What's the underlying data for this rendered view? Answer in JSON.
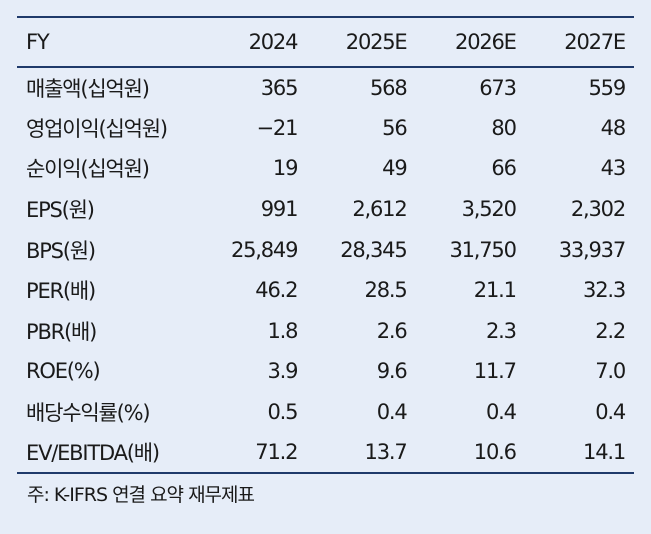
{
  "table": {
    "header": [
      "FY",
      "2024",
      "2025E",
      "2026E",
      "2027E"
    ],
    "rows": [
      {
        "label": "매출액(십억원)",
        "values": [
          "365",
          "568",
          "673",
          "559"
        ]
      },
      {
        "label": "영업이익(십억원)",
        "values": [
          "−21",
          "56",
          "80",
          "48"
        ]
      },
      {
        "label": "순이익(십억원)",
        "values": [
          "19",
          "49",
          "66",
          "43"
        ]
      },
      {
        "label": "EPS(원)",
        "values": [
          "991",
          "2,612",
          "3,520",
          "2,302"
        ]
      },
      {
        "label": "BPS(원)",
        "values": [
          "25,849",
          "28,345",
          "31,750",
          "33,937"
        ]
      },
      {
        "label": "PER(배)",
        "values": [
          "46.2",
          "28.5",
          "21.1",
          "32.3"
        ]
      },
      {
        "label": "PBR(배)",
        "values": [
          "1.8",
          "2.6",
          "2.3",
          "2.2"
        ]
      },
      {
        "label": "ROE(%)",
        "values": [
          "3.9",
          "9.6",
          "11.7",
          "7.0"
        ]
      },
      {
        "label": "배당수익률(%)",
        "values": [
          "0.5",
          "0.4",
          "0.4",
          "0.4"
        ]
      },
      {
        "label": "EV/EBITDA(배)",
        "values": [
          "71.2",
          "13.7",
          "10.6",
          "14.1"
        ]
      }
    ]
  },
  "note": "주: K-IFRS 연결 요약 재무제표",
  "colors": {
    "background": "#e6edf8",
    "rule": "#1f3a6b",
    "text": "#1a1a1a"
  }
}
